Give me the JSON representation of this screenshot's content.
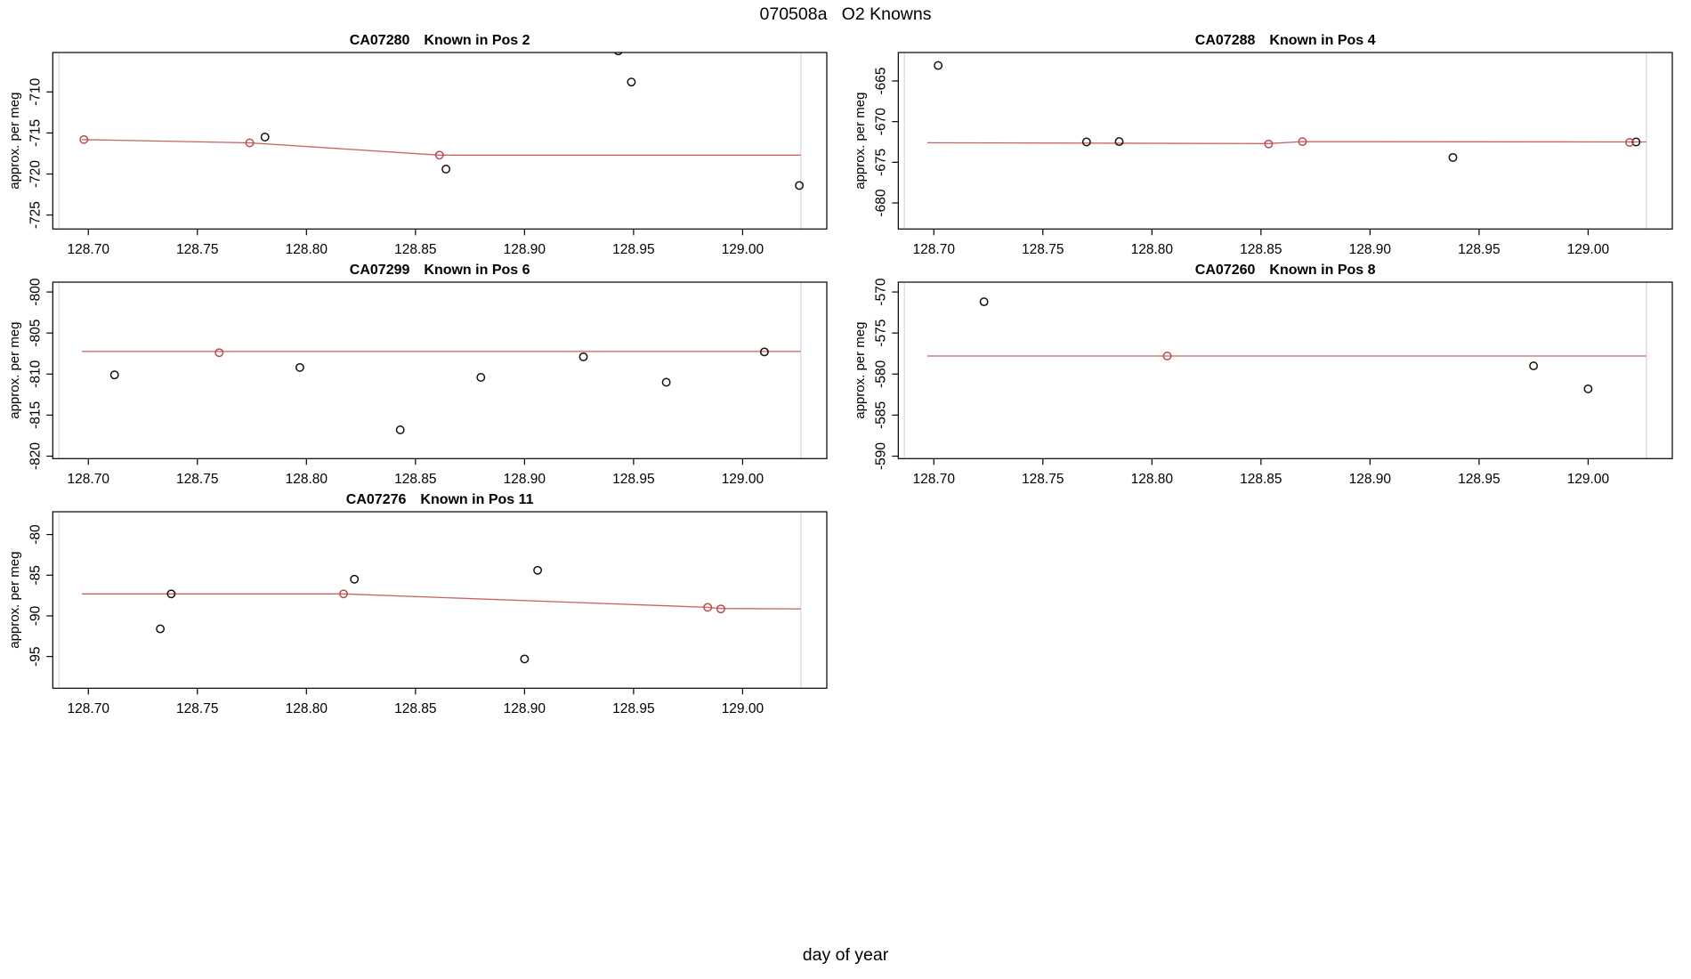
{
  "figure": {
    "title": "070508a   O2 Knowns",
    "xlabel": "day of year"
  },
  "style": {
    "background": "#ffffff",
    "axis_color": "#000000",
    "fit_color": "#c96262",
    "fit_marker_color": "#bb4a4a",
    "known_marker_color": "#1c0e0e",
    "vline_color": "#cfcfcf",
    "text_color": "#000000"
  },
  "chart_data": [
    {
      "type": "scatter",
      "title": "CA07280",
      "subtitle": "Known in Pos 2",
      "ylabel": "approx. per meg",
      "xlim": [
        128.6837,
        129.0386
      ],
      "ylim": [
        -726.7,
        -705.2
      ],
      "xticks": [
        "128.70",
        "128.75",
        "128.80",
        "128.85",
        "128.90",
        "128.95",
        "129.00"
      ],
      "yticks": [
        -725,
        -720,
        -715,
        -710
      ],
      "vlines": [
        128.6865,
        129.0267
      ],
      "series": [
        {
          "name": "known-measurements",
          "color_key": "known_marker_color",
          "points": [
            [
              128.781,
              -715.5
            ],
            [
              128.864,
              -719.4
            ],
            [
              128.943,
              -705.0
            ],
            [
              128.949,
              -708.8
            ],
            [
              129.026,
              -721.4
            ]
          ]
        },
        {
          "name": "fit-points",
          "color_key": "fit_marker_color",
          "points": [
            [
              128.698,
              -715.8
            ],
            [
              128.774,
              -716.2
            ],
            [
              128.861,
              -717.7
            ]
          ]
        }
      ],
      "fit_line": [
        [
          128.697,
          -715.8
        ],
        [
          128.774,
          -716.2
        ],
        [
          128.861,
          -717.7
        ],
        [
          129.0267,
          -717.7
        ]
      ]
    },
    {
      "type": "scatter",
      "title": "CA07288",
      "subtitle": "Known in Pos 4",
      "ylabel": "approx. per meg",
      "xlim": [
        128.6837,
        129.0386
      ],
      "ylim": [
        -683.2,
        -661.5
      ],
      "xticks": [
        "128.70",
        "128.75",
        "128.80",
        "128.85",
        "128.90",
        "128.95",
        "129.00"
      ],
      "yticks": [
        -680,
        -675,
        -670,
        -665
      ],
      "vlines": [
        128.6865,
        129.0267
      ],
      "series": [
        {
          "name": "known-measurements",
          "color_key": "known_marker_color",
          "points": [
            [
              128.702,
              -663.1
            ],
            [
              128.77,
              -672.5
            ],
            [
              128.785,
              -672.45
            ],
            [
              128.938,
              -674.4
            ],
            [
              129.022,
              -672.5
            ]
          ]
        },
        {
          "name": "fit-points",
          "color_key": "fit_marker_color",
          "points": [
            [
              128.8535,
              -672.75
            ],
            [
              128.869,
              -672.45
            ],
            [
              129.019,
              -672.55
            ]
          ]
        }
      ],
      "fit_line": [
        [
          128.697,
          -672.6
        ],
        [
          128.8535,
          -672.7
        ],
        [
          128.869,
          -672.45
        ],
        [
          129.0267,
          -672.5
        ]
      ]
    },
    {
      "type": "scatter",
      "title": "CA07299",
      "subtitle": "Known in Pos 6",
      "ylabel": "approx. per meg",
      "xlim": [
        128.6837,
        129.0386
      ],
      "ylim": [
        -820.3,
        -798.8
      ],
      "xticks": [
        "128.70",
        "128.75",
        "128.80",
        "128.85",
        "128.90",
        "128.95",
        "129.00"
      ],
      "yticks": [
        -820,
        -815,
        -810,
        -805,
        -800
      ],
      "vlines": [
        128.6865,
        129.0267
      ],
      "series": [
        {
          "name": "known-measurements",
          "color_key": "known_marker_color",
          "points": [
            [
              128.712,
              -810.1
            ],
            [
              128.797,
              -809.2
            ],
            [
              128.843,
              -816.8
            ],
            [
              128.88,
              -810.4
            ],
            [
              128.927,
              -807.9
            ],
            [
              128.965,
              -811.0
            ],
            [
              129.01,
              -807.3
            ]
          ]
        },
        {
          "name": "fit-points",
          "color_key": "fit_marker_color",
          "points": [
            [
              128.76,
              -807.4
            ]
          ]
        }
      ],
      "fit_line": [
        [
          128.697,
          -807.25
        ],
        [
          129.0267,
          -807.25
        ]
      ]
    },
    {
      "type": "scatter",
      "title": "CA07260",
      "subtitle": "Known in Pos 8",
      "ylabel": "approx. per meg",
      "xlim": [
        128.6837,
        129.0386
      ],
      "ylim": [
        -590.3,
        -568.8
      ],
      "xticks": [
        "128.70",
        "128.75",
        "128.80",
        "128.85",
        "128.90",
        "128.95",
        "129.00"
      ],
      "yticks": [
        -590,
        -585,
        -580,
        -575,
        -570
      ],
      "vlines": [
        128.6865,
        129.0267
      ],
      "series": [
        {
          "name": "known-measurements",
          "color_key": "known_marker_color",
          "points": [
            [
              128.723,
              -571.2
            ],
            [
              128.975,
              -579.0
            ],
            [
              129.0,
              -581.8
            ]
          ]
        },
        {
          "name": "fit-points",
          "color_key": "fit_marker_color",
          "points": [
            [
              128.807,
              -577.8
            ]
          ]
        }
      ],
      "fit_line": [
        [
          128.697,
          -577.8
        ],
        [
          129.0267,
          -577.8
        ]
      ]
    },
    {
      "type": "scatter",
      "title": "CA07276",
      "subtitle": "Known in Pos 11",
      "ylabel": "approx. per meg",
      "xlim": [
        128.6837,
        129.0386
      ],
      "ylim": [
        -98.9,
        -77.2
      ],
      "xticks": [
        "128.70",
        "128.75",
        "128.80",
        "128.85",
        "128.90",
        "128.95",
        "129.00"
      ],
      "yticks": [
        -95,
        -90,
        -85,
        -80
      ],
      "vlines": [
        128.6865,
        129.0267
      ],
      "series": [
        {
          "name": "known-measurements",
          "color_key": "known_marker_color",
          "points": [
            [
              128.733,
              -91.6
            ],
            [
              128.738,
              -87.3
            ],
            [
              128.822,
              -85.5
            ],
            [
              128.9,
              -95.3
            ],
            [
              128.906,
              -84.4
            ]
          ]
        },
        {
          "name": "fit-points",
          "color_key": "fit_marker_color",
          "points": [
            [
              128.817,
              -87.3
            ],
            [
              128.984,
              -88.95
            ],
            [
              128.99,
              -89.15
            ]
          ]
        }
      ],
      "fit_line": [
        [
          128.697,
          -87.3
        ],
        [
          128.817,
          -87.3
        ],
        [
          128.984,
          -88.95
        ],
        [
          128.99,
          -89.1
        ],
        [
          129.0267,
          -89.15
        ]
      ]
    }
  ]
}
